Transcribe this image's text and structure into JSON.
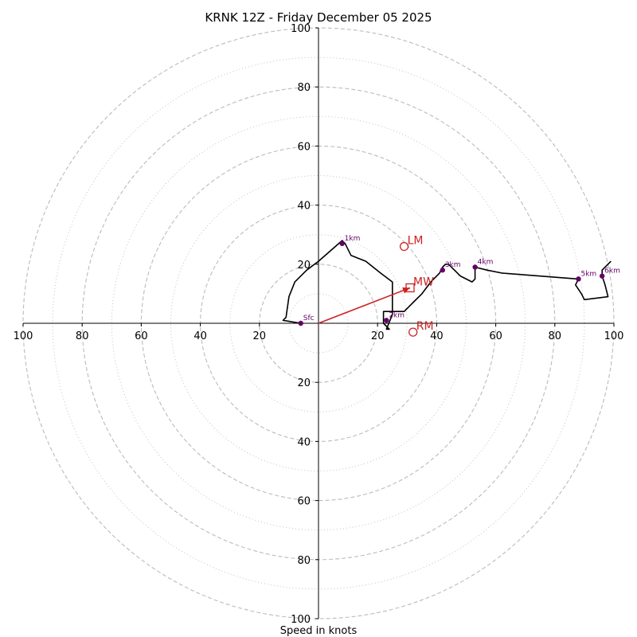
{
  "chart_data": {
    "type": "hodograph",
    "title": "KRNK 12Z - Friday December 05 2025",
    "xlabel": "Speed in knots",
    "ylabel": "",
    "xlim": [
      -100,
      100
    ],
    "ylim": [
      -100,
      100
    ],
    "rings_dashed": [
      20,
      40,
      60,
      80,
      100
    ],
    "rings_dotted": [
      10,
      30,
      50,
      70,
      90
    ],
    "x_ticks": [
      "100",
      "80",
      "60",
      "40",
      "20",
      "20",
      "40",
      "60",
      "80",
      "100"
    ],
    "y_ticks": [
      "100",
      "80",
      "60",
      "40",
      "20",
      "20",
      "40",
      "60",
      "80",
      "100"
    ],
    "colors": {
      "trace": "#000000",
      "height_marker": "#660066",
      "motion": "#cc2222",
      "ring": "#bbbbbb"
    },
    "trace": [
      [
        -6,
        0
      ],
      [
        -12,
        1
      ],
      [
        -11,
        2
      ],
      [
        -10,
        9
      ],
      [
        -8,
        14
      ],
      [
        -4,
        18
      ],
      [
        0,
        21
      ],
      [
        8,
        28
      ],
      [
        9,
        27
      ],
      [
        10,
        25
      ],
      [
        11,
        23
      ],
      [
        16,
        21
      ],
      [
        21,
        17
      ],
      [
        25,
        14
      ],
      [
        25,
        8
      ],
      [
        25,
        5
      ],
      [
        25,
        3
      ],
      [
        23,
        -2
      ],
      [
        24,
        -2
      ],
      [
        22,
        0
      ],
      [
        22,
        4
      ],
      [
        29,
        4
      ],
      [
        32,
        7
      ],
      [
        35,
        10
      ],
      [
        38,
        14
      ],
      [
        41,
        17
      ],
      [
        42,
        19
      ],
      [
        43,
        20
      ],
      [
        44,
        20
      ],
      [
        46,
        18
      ],
      [
        48,
        16
      ],
      [
        52,
        14
      ],
      [
        53,
        15
      ],
      [
        53,
        19
      ],
      [
        57,
        18
      ],
      [
        62,
        17
      ],
      [
        88,
        15
      ],
      [
        87,
        13
      ],
      [
        89,
        10
      ],
      [
        90,
        8
      ],
      [
        98,
        9
      ],
      [
        97,
        13
      ],
      [
        96,
        16
      ],
      [
        96,
        18
      ],
      [
        98,
        20
      ],
      [
        99,
        21
      ]
    ],
    "height_markers": [
      {
        "label": "Sfc",
        "u": -6,
        "v": 0
      },
      {
        "label": "1km",
        "u": 8,
        "v": 27
      },
      {
        "label": "2km",
        "u": 23,
        "v": 1
      },
      {
        "label": "3km",
        "u": 42,
        "v": 18
      },
      {
        "label": "4km",
        "u": 53,
        "v": 19
      },
      {
        "label": "5km",
        "u": 88,
        "v": 15
      },
      {
        "label": "6km",
        "u": 96,
        "v": 16
      }
    ],
    "storm_motion": [
      {
        "label": "LM",
        "u": 29,
        "v": 26,
        "marker": "circle"
      },
      {
        "label": "MW",
        "u": 31,
        "v": 12,
        "marker": "square"
      },
      {
        "label": "RM",
        "u": 32,
        "v": -3,
        "marker": "circle"
      }
    ],
    "mean_wind_vector": {
      "from": [
        0,
        0
      ],
      "to": [
        31,
        12
      ]
    }
  }
}
